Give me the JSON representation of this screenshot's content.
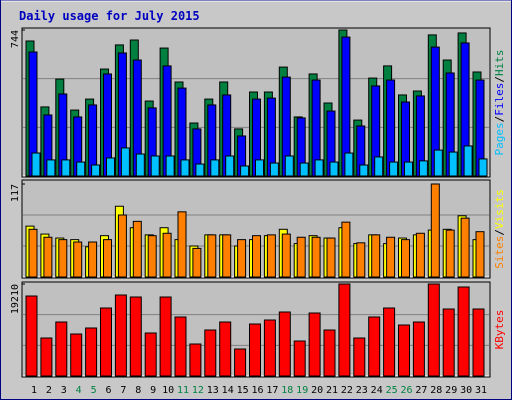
{
  "chart_data": [
    {
      "type": "bar",
      "title": "Daily usage for July 2015",
      "ylim": [
        0,
        744
      ],
      "yticks": [
        744
      ],
      "legend_separator": "/",
      "series": [
        {
          "name": "Pages",
          "color": "#00c0ff",
          "values": [
            117,
            82,
            82,
            71,
            56,
            92,
            143,
            112,
            102,
            102,
            82,
            61,
            82,
            102,
            51,
            82,
            66,
            102,
            66,
            82,
            71,
            117,
            56,
            97,
            71,
            71,
            77,
            132,
            122,
            153,
            87
          ]
        },
        {
          "name": "Files",
          "color": "#0000ff",
          "values": [
            632,
            311,
            418,
            301,
            362,
            520,
            627,
            591,
            347,
            561,
            448,
            240,
            362,
            413,
            204,
            392,
            397,
            504,
            296,
            489,
            331,
            708,
            255,
            459,
            489,
            377,
            408,
            657,
            525,
            678,
            489
          ]
        },
        {
          "name": "Hits",
          "color": "#008040",
          "values": [
            688,
            352,
            494,
            336,
            392,
            545,
            668,
            693,
            382,
            652,
            479,
            270,
            392,
            479,
            240,
            428,
            428,
            555,
            301,
            520,
            372,
            744,
            285,
            499,
            561,
            413,
            433,
            719,
            591,
            729,
            530
          ]
        }
      ]
    },
    {
      "type": "bar",
      "ylim": [
        0,
        117
      ],
      "yticks": [
        117
      ],
      "legend_separator": "/",
      "series": [
        {
          "name": "Sites",
          "color": "#ff8000",
          "values": [
            60,
            50,
            47,
            44,
            44,
            47,
            78,
            70,
            52,
            55,
            82,
            36,
            53,
            53,
            47,
            52,
            53,
            54,
            50,
            50,
            49,
            69,
            43,
            53,
            50,
            47,
            55,
            117,
            59,
            74,
            57
          ]
        },
        {
          "name": "Visits",
          "color": "#ffff00",
          "values": [
            64,
            54,
            49,
            47,
            38,
            52,
            89,
            62,
            53,
            62,
            47,
            39,
            53,
            53,
            39,
            47,
            52,
            60,
            42,
            52,
            49,
            62,
            42,
            53,
            42,
            49,
            53,
            59,
            60,
            77,
            47
          ]
        }
      ]
    },
    {
      "type": "bar",
      "ylim": [
        0,
        19210
      ],
      "yticks": [
        19210
      ],
      "series": [
        {
          "name": "KBytes",
          "color": "#ff0000",
          "values": [
            16704,
            7935,
            11275,
            8770,
            10023,
            14199,
            16913,
            16495,
            8979,
            16495,
            12320,
            6682,
            9605,
            11275,
            5638,
            10858,
            11693,
            13363,
            7308,
            13154,
            9605,
            19210,
            7935,
            12320,
            14199,
            10649,
            11275,
            19210,
            13990,
            18583,
            13990
          ]
        }
      ],
      "categories": [
        "1",
        "2",
        "3",
        "4",
        "5",
        "6",
        "7",
        "8",
        "9",
        "10",
        "11",
        "12",
        "13",
        "14",
        "15",
        "16",
        "17",
        "18",
        "19",
        "20",
        "21",
        "22",
        "23",
        "24",
        "25",
        "26",
        "27",
        "28",
        "29",
        "30",
        "31"
      ],
      "category_colors": [
        "#000000",
        "#000000",
        "#000000",
        "#008040",
        "#008040",
        "#000000",
        "#000000",
        "#000000",
        "#000000",
        "#000000",
        "#008040",
        "#008040",
        "#000000",
        "#000000",
        "#000000",
        "#000000",
        "#000000",
        "#008040",
        "#008040",
        "#000000",
        "#000000",
        "#000000",
        "#000000",
        "#000000",
        "#008040",
        "#008040",
        "#000000",
        "#000000",
        "#000000",
        "#000000",
        "#000000"
      ]
    }
  ]
}
